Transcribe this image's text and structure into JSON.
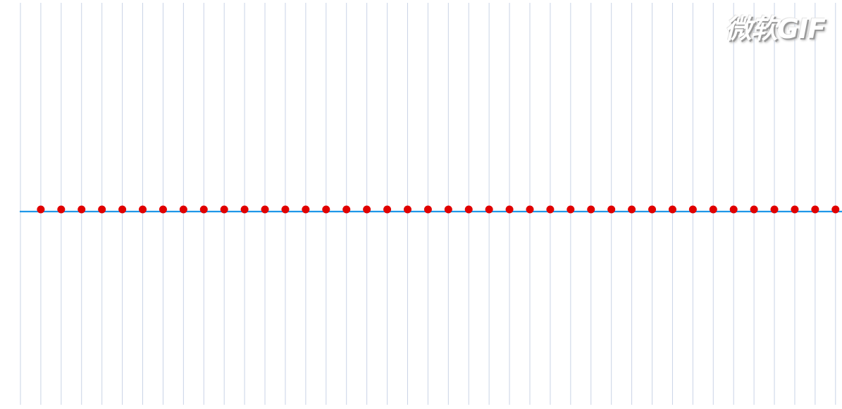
{
  "watermark": {
    "text": "微软GIF"
  },
  "colors": {
    "background": "#ffffff",
    "grid_line": "#c9d3e6",
    "axis_line": "#1f97e8",
    "point": "#e00000"
  },
  "diagram": {
    "point_count": 41,
    "vertical_line_count": 42
  }
}
